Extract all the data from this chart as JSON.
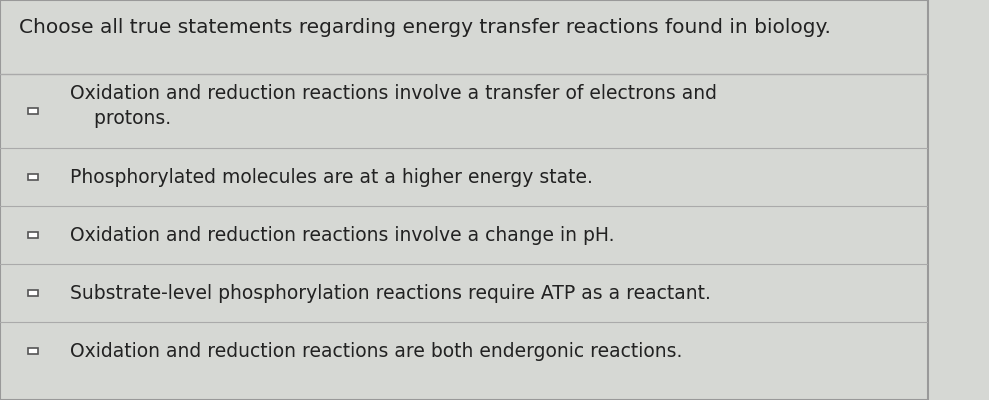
{
  "title": "Choose all true statements regarding energy transfer reactions found in biology.",
  "options": [
    "Oxidation and reduction reactions involve a transfer of electrons and\n    protons.",
    "Phosphorylated molecules are at a higher energy state.",
    "Oxidation and reduction reactions involve a change in pH.",
    "Substrate-level phosphorylation reactions require ATP as a reactant.",
    "Oxidation and reduction reactions are both endergonic reactions."
  ],
  "bg_color": "#d6d8d4",
  "title_bg_color": "#d6d8d4",
  "option_bg_color": "#d6d8d4",
  "line_color": "#aaaaaa",
  "text_color": "#222222",
  "title_fontsize": 14.5,
  "option_fontsize": 13.5,
  "checkbox_size": 0.013,
  "fig_width": 9.89,
  "fig_height": 4.0
}
